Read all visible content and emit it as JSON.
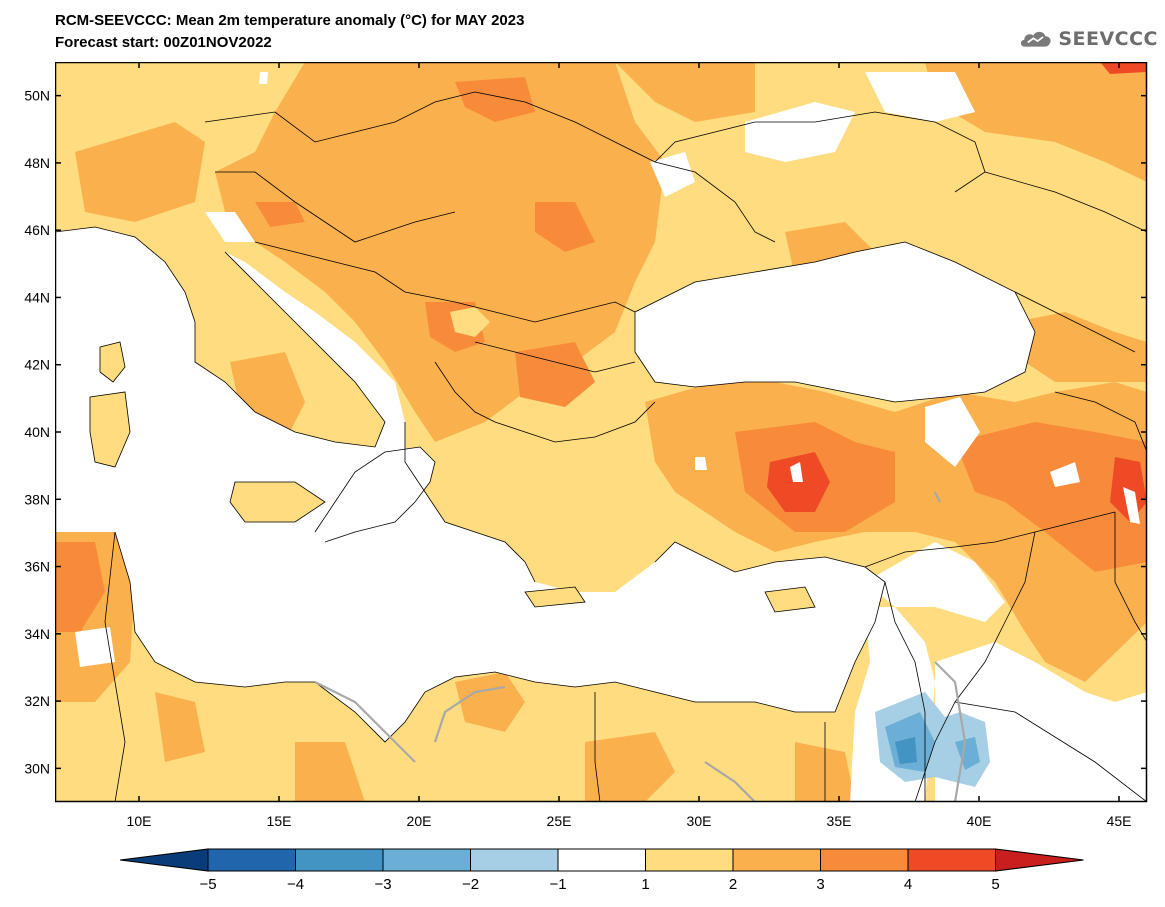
{
  "header": {
    "title": "RCM-SEEVCCC: Mean 2m temperature anomaly (°C) for MAY 2023",
    "subtitle": "Forecast start: 00Z01NOV2022"
  },
  "logo": {
    "text": "SEEVCCC",
    "icon": "cloud-logo-icon"
  },
  "map": {
    "lon_range": [
      7,
      46
    ],
    "lat_range": [
      29,
      51
    ],
    "x_ticks": [
      {
        "value": 10,
        "label": "10E"
      },
      {
        "value": 15,
        "label": "15E"
      },
      {
        "value": 20,
        "label": "20E"
      },
      {
        "value": 25,
        "label": "25E"
      },
      {
        "value": 30,
        "label": "30E"
      },
      {
        "value": 35,
        "label": "35E"
      },
      {
        "value": 40,
        "label": "40E"
      },
      {
        "value": 45,
        "label": "45E"
      }
    ],
    "y_ticks": [
      {
        "value": 50,
        "label": "50N"
      },
      {
        "value": 48,
        "label": "48N"
      },
      {
        "value": 46,
        "label": "46N"
      },
      {
        "value": 44,
        "label": "44N"
      },
      {
        "value": 42,
        "label": "42N"
      },
      {
        "value": 40,
        "label": "40N"
      },
      {
        "value": 38,
        "label": "38N"
      },
      {
        "value": 36,
        "label": "36N"
      },
      {
        "value": 34,
        "label": "34N"
      },
      {
        "value": 32,
        "label": "32N"
      },
      {
        "value": 30,
        "label": "30N"
      }
    ]
  },
  "colorbar": {
    "labels": [
      "-5",
      "-4",
      "-3",
      "-2",
      "-1",
      "1",
      "2",
      "3",
      "4",
      "5"
    ],
    "colors": {
      "below_-5": "#0b3c7a",
      "-5_-4": "#2166ac",
      "-4_-3": "#4393c3",
      "-3_-2": "#6baed6",
      "-2_-1": "#a6cfe6",
      "-1_1": "#ffffff",
      "1_2": "#fedc7f",
      "2_3": "#fbb04e",
      "3_4": "#f78b3a",
      "4_5": "#ef4a26",
      "above_5": "#c81e1e"
    }
  }
}
